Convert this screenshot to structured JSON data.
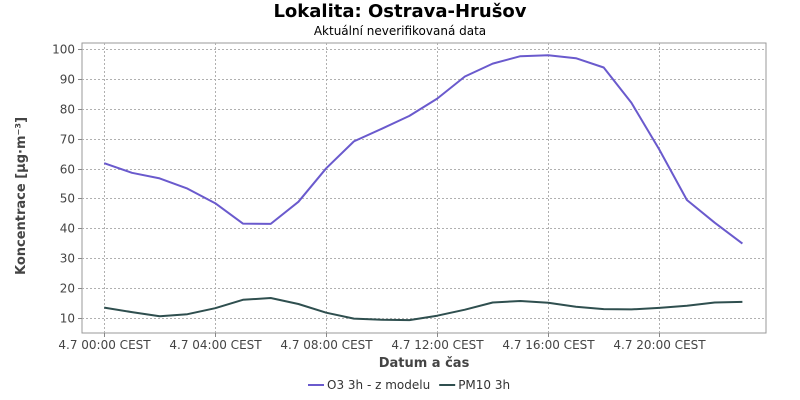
{
  "chart_data": {
    "type": "line",
    "title": "Lokalita: Ostrava-Hrušov",
    "subtitle": "Aktuální neverifikovaná data",
    "xlabel": "Datum a čas",
    "ylabel": "Koncentrace [µg·m⁻³]",
    "ylim": [
      5,
      102
    ],
    "yticks": [
      10,
      20,
      30,
      40,
      50,
      60,
      70,
      80,
      90,
      100
    ],
    "x_hours": [
      0,
      1,
      2,
      3,
      4,
      5,
      6,
      7,
      8,
      9,
      10,
      11,
      12,
      13,
      14,
      15,
      16,
      17,
      18,
      19,
      20,
      21,
      22,
      23
    ],
    "xlim_hours": [
      -0.8,
      23.85
    ],
    "xticks": [
      {
        "hour": 0,
        "label": "4.7 00:00 CEST"
      },
      {
        "hour": 4,
        "label": "4.7 04:00 CEST"
      },
      {
        "hour": 8,
        "label": "4.7 08:00 CEST"
      },
      {
        "hour": 12,
        "label": "4.7 12:00 CEST"
      },
      {
        "hour": 16,
        "label": "4.7 16:00 CEST"
      },
      {
        "hour": 20,
        "label": "4.7 20:00 CEST"
      }
    ],
    "grid": true,
    "legend_position": "bottom-center",
    "series": [
      {
        "name": "O3 3h - z modelu",
        "color": "#6a5acd",
        "values": [
          61.8,
          58.6,
          56.7,
          53.3,
          48.4,
          41.6,
          41.5,
          48.9,
          60.1,
          69.1,
          73.3,
          77.6,
          83.4,
          90.8,
          95.1,
          97.6,
          97.9,
          96.9,
          93.8,
          82.0,
          66.4,
          49.5,
          41.9,
          34.9
        ]
      },
      {
        "name": "PM10 3h",
        "color": "#2f4f4f",
        "values": [
          13.5,
          12.0,
          10.6,
          11.3,
          13.3,
          16.1,
          16.7,
          14.7,
          11.8,
          9.8,
          9.4,
          9.3,
          10.8,
          12.8,
          15.2,
          15.7,
          15.1,
          13.8,
          13.0,
          12.9,
          13.4,
          14.1,
          15.2,
          15.4
        ]
      }
    ]
  }
}
